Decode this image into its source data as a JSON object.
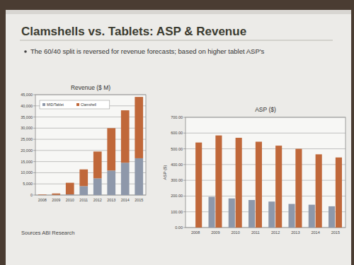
{
  "title": "Clamshells vs. Tablets: ASP & Revenue",
  "bullet": "The 60/40 split is reversed for revenue forecasts; based on higher tablet ASP's",
  "source": "Sources ABI Research",
  "chart_data": [
    {
      "type": "bar",
      "title": "Revenue ($ M)",
      "stacked": true,
      "grid": true,
      "legend": "top-left",
      "categories": [
        "2008",
        "2009",
        "2010",
        "2011",
        "2012",
        "2013",
        "2014",
        "2015"
      ],
      "series": [
        {
          "name": "MID/Tablet",
          "color": "#8e98aa",
          "values": [
            0,
            100,
            300,
            4000,
            7500,
            11000,
            14500,
            16500
          ]
        },
        {
          "name": "Clamshell",
          "color": "#c0683a",
          "values": [
            200,
            600,
            5200,
            7500,
            12000,
            19000,
            23500,
            27500
          ]
        }
      ],
      "ylim": [
        0,
        45000
      ],
      "yticks": [
        0,
        {
          "value": 5000,
          "label": "5,000"
        },
        {
          "value": 10000,
          "label": "10,000"
        },
        {
          "value": 15000,
          "label": "15,000"
        },
        {
          "value": 20000,
          "label": "20,000"
        },
        {
          "value": 25000,
          "label": "25,000"
        },
        {
          "value": 30000,
          "label": "30,000"
        },
        {
          "value": 35000,
          "label": "35,000"
        },
        {
          "value": 40000,
          "label": "40,000"
        },
        {
          "value": 45000,
          "label": "45,000"
        }
      ]
    },
    {
      "type": "bar",
      "title": "ASP ($)",
      "y_label": "ASP ($)",
      "stacked": false,
      "grid": true,
      "categories": [
        "2008",
        "2009",
        "2010",
        "2011",
        "2012",
        "2013",
        "2014",
        "2015"
      ],
      "series": [
        {
          "color": "#8e98aa",
          "values": [
            null,
            195,
            185,
            175,
            165,
            150,
            145,
            135
          ]
        },
        {
          "color": "#c0683a",
          "values": [
            540,
            585,
            570,
            545,
            520,
            500,
            465,
            445
          ]
        }
      ],
      "ylim": [
        0,
        700
      ],
      "yticks": [
        {
          "value": 0,
          "label": "0.00"
        },
        {
          "value": 100,
          "label": "100.00"
        },
        {
          "value": 200,
          "label": "200.00"
        },
        {
          "value": 300,
          "label": "300.00"
        },
        {
          "value": 400,
          "label": "400.00"
        },
        {
          "value": 500,
          "label": "500.00"
        },
        {
          "value": 600,
          "label": "600.00"
        },
        {
          "value": 700,
          "label": "700.00"
        }
      ]
    }
  ]
}
